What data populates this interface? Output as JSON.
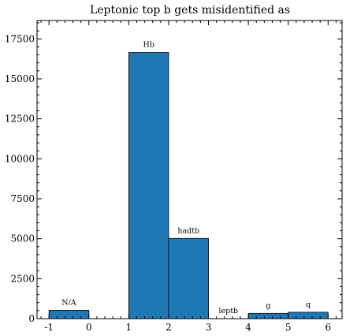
{
  "chart_data": {
    "type": "bar",
    "title": "Leptonic top b gets misidentified as",
    "xlabel": "",
    "ylabel": "",
    "xlim": [
      -1.3,
      6.35
    ],
    "ylim": [
      0,
      18650
    ],
    "bar_color": "#1f77b4",
    "edge_color": "#000000",
    "bars": [
      {
        "x0": -1,
        "x1": 0,
        "value": 520,
        "label": "N/A"
      },
      {
        "x0": 1,
        "x1": 2,
        "value": 16650,
        "label": "Hb"
      },
      {
        "x0": 2,
        "x1": 3,
        "value": 5020,
        "label": "hadtb"
      },
      {
        "x0": 3,
        "x1": 4,
        "value": 0,
        "label": "leptb"
      },
      {
        "x0": 4,
        "x1": 5,
        "value": 330,
        "label": "g"
      },
      {
        "x0": 5,
        "x1": 6,
        "value": 400,
        "label": "q"
      }
    ],
    "x_ticks": [
      -1,
      0,
      1,
      2,
      3,
      4,
      5,
      6
    ],
    "x_tick_labels": [
      "-1",
      "0",
      "1",
      "2",
      "3",
      "4",
      "5",
      "6"
    ],
    "y_ticks": [
      0,
      2500,
      5000,
      7500,
      10000,
      12500,
      15000,
      17500
    ],
    "y_tick_labels": [
      "0",
      "2500",
      "5000",
      "7500",
      "10000",
      "12500",
      "15000",
      "17500"
    ],
    "x_minor_step": 0.2,
    "y_minor_step": 500,
    "grid": false,
    "ticks_direction": "in"
  }
}
